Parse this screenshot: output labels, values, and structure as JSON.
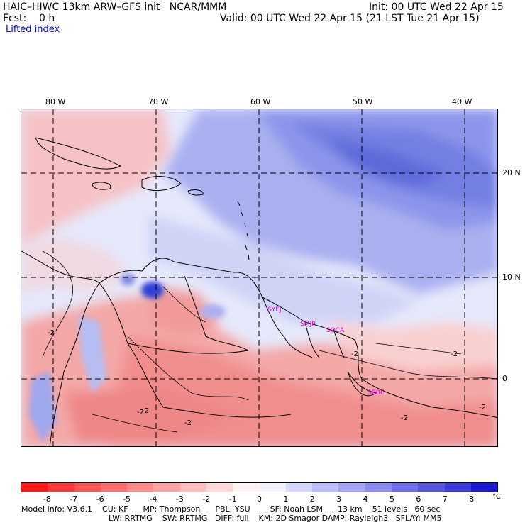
{
  "header": {
    "line1_left": "HAIC–HIWC 13km ARW–GFS init   NCAR/MMM",
    "line1_right": "Init: 00 UTC Wed 22 Apr 15",
    "line2_left": "Fcst:    0 h",
    "line2_right": "Valid: 00 UTC Wed 22 Apr 15 (21 LST Tue 21 Apr 15)",
    "field_label": "Lifted index"
  },
  "axes": {
    "lon_labels": [
      "80 W",
      "70 W",
      "60 W",
      "50 W",
      "40 W"
    ],
    "lat_labels": [
      "20 N",
      "10 N",
      "0"
    ]
  },
  "contour_labels": [
    "-2",
    "-2",
    "-2",
    "-2",
    "-2",
    "-2",
    "-2",
    "-2"
  ],
  "sites": [
    "SYEJ",
    "SMJP",
    "SOCA",
    "SBBE"
  ],
  "colorbar": {
    "unit": "°C",
    "ticks": [
      "-8",
      "-7",
      "-6",
      "-5",
      "-4",
      "-3",
      "-2",
      "-1",
      "0",
      "1",
      "2",
      "3",
      "4",
      "5",
      "6",
      "7",
      "8"
    ],
    "colors": [
      "#ff1a1a",
      "#ff3a3a",
      "#ff5555",
      "#ff6f6f",
      "#ff8a8a",
      "#ffa4a4",
      "#ffbebe",
      "#ffd8d8",
      "#fff2f2",
      "#f2f2ff",
      "#d8d8ff",
      "#bebefa",
      "#a4a4f5",
      "#8a8af0",
      "#6f6fe8",
      "#5555e0",
      "#3a3ad8",
      "#1a1ad0"
    ]
  },
  "footer": {
    "line1": "Model Info: V3.6.1    CU: KF      MP: Thompson      PBL: YSU        SF: Noah LSM      13 km    51 levels   60 sec",
    "line2": "LW: RRTMG    SW: RRTMG   DIFF: full    KM: 2D Smagor DAMP: Rayleigh3   SFLAY: MM5"
  }
}
